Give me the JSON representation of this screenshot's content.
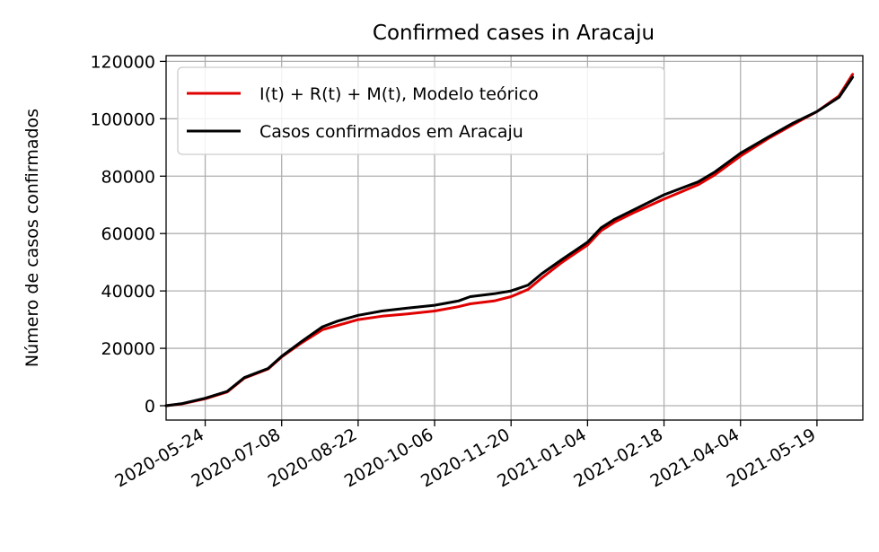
{
  "chart_data": {
    "type": "line",
    "title": "Confirmed cases in Aracaju",
    "xlabel": "",
    "ylabel": "Número de casos confirmados",
    "x_start": "2020-05-01",
    "x_end": "2021-06-15",
    "xlim": [
      "2020-05-01",
      "2021-06-15"
    ],
    "ylim": [
      -5000,
      122000
    ],
    "grid": true,
    "legend_position": "top-left",
    "x_ticks": [
      "2020-05-24",
      "2020-07-08",
      "2020-08-22",
      "2020-10-06",
      "2020-11-20",
      "2021-01-04",
      "2021-02-18",
      "2021-04-04",
      "2021-05-19"
    ],
    "y_ticks": [
      0,
      20000,
      40000,
      60000,
      80000,
      100000,
      120000
    ],
    "y_tick_labels": [
      "0",
      "20000",
      "40000",
      "60000",
      "80000",
      "100000",
      "120000"
    ],
    "series": [
      {
        "name": "I(t) + R(t) + M(t), Modelo teórico",
        "color": "#e00000",
        "points": [
          [
            "2020-05-01",
            0
          ],
          [
            "2020-05-10",
            600
          ],
          [
            "2020-05-24",
            2400
          ],
          [
            "2020-06-06",
            4800
          ],
          [
            "2020-06-16",
            9600
          ],
          [
            "2020-06-30",
            12800
          ],
          [
            "2020-07-08",
            17000
          ],
          [
            "2020-07-20",
            22000
          ],
          [
            "2020-08-01",
            26500
          ],
          [
            "2020-08-10",
            28000
          ],
          [
            "2020-08-22",
            30000
          ],
          [
            "2020-09-05",
            31200
          ],
          [
            "2020-09-20",
            32000
          ],
          [
            "2020-10-06",
            33000
          ],
          [
            "2020-10-20",
            34500
          ],
          [
            "2020-10-27",
            35500
          ],
          [
            "2020-11-10",
            36500
          ],
          [
            "2020-11-20",
            38000
          ],
          [
            "2020-11-30",
            40500
          ],
          [
            "2020-12-08",
            44500
          ],
          [
            "2020-12-20",
            50000
          ],
          [
            "2021-01-04",
            56000
          ],
          [
            "2021-01-12",
            61000
          ],
          [
            "2021-01-20",
            64000
          ],
          [
            "2021-02-01",
            67500
          ],
          [
            "2021-02-18",
            72000
          ],
          [
            "2021-03-10",
            77000
          ],
          [
            "2021-03-20",
            80500
          ],
          [
            "2021-04-04",
            87000
          ],
          [
            "2021-04-20",
            93000
          ],
          [
            "2021-05-05",
            98000
          ],
          [
            "2021-05-19",
            102500
          ],
          [
            "2021-06-01",
            108000
          ],
          [
            "2021-06-09",
            115500
          ]
        ]
      },
      {
        "name": "Casos confirmados em Aracaju",
        "color": "#000000",
        "points": [
          [
            "2020-05-01",
            0
          ],
          [
            "2020-05-10",
            700
          ],
          [
            "2020-05-24",
            2600
          ],
          [
            "2020-06-06",
            5000
          ],
          [
            "2020-06-16",
            9800
          ],
          [
            "2020-06-30",
            13000
          ],
          [
            "2020-07-08",
            17200
          ],
          [
            "2020-07-20",
            22500
          ],
          [
            "2020-08-01",
            27500
          ],
          [
            "2020-08-10",
            29500
          ],
          [
            "2020-08-22",
            31500
          ],
          [
            "2020-09-05",
            33000
          ],
          [
            "2020-09-20",
            34000
          ],
          [
            "2020-10-06",
            35000
          ],
          [
            "2020-10-20",
            36500
          ],
          [
            "2020-10-27",
            38000
          ],
          [
            "2020-11-10",
            39000
          ],
          [
            "2020-11-20",
            40000
          ],
          [
            "2020-11-30",
            42000
          ],
          [
            "2020-12-08",
            46000
          ],
          [
            "2020-12-20",
            51000
          ],
          [
            "2021-01-04",
            57000
          ],
          [
            "2021-01-12",
            62000
          ],
          [
            "2021-01-20",
            65000
          ],
          [
            "2021-02-01",
            68500
          ],
          [
            "2021-02-18",
            73500
          ],
          [
            "2021-03-10",
            78000
          ],
          [
            "2021-03-20",
            81500
          ],
          [
            "2021-04-04",
            88000
          ],
          [
            "2021-04-20",
            93500
          ],
          [
            "2021-05-05",
            98500
          ],
          [
            "2021-05-19",
            102500
          ],
          [
            "2021-06-01",
            107500
          ],
          [
            "2021-06-09",
            114500
          ]
        ]
      }
    ]
  }
}
